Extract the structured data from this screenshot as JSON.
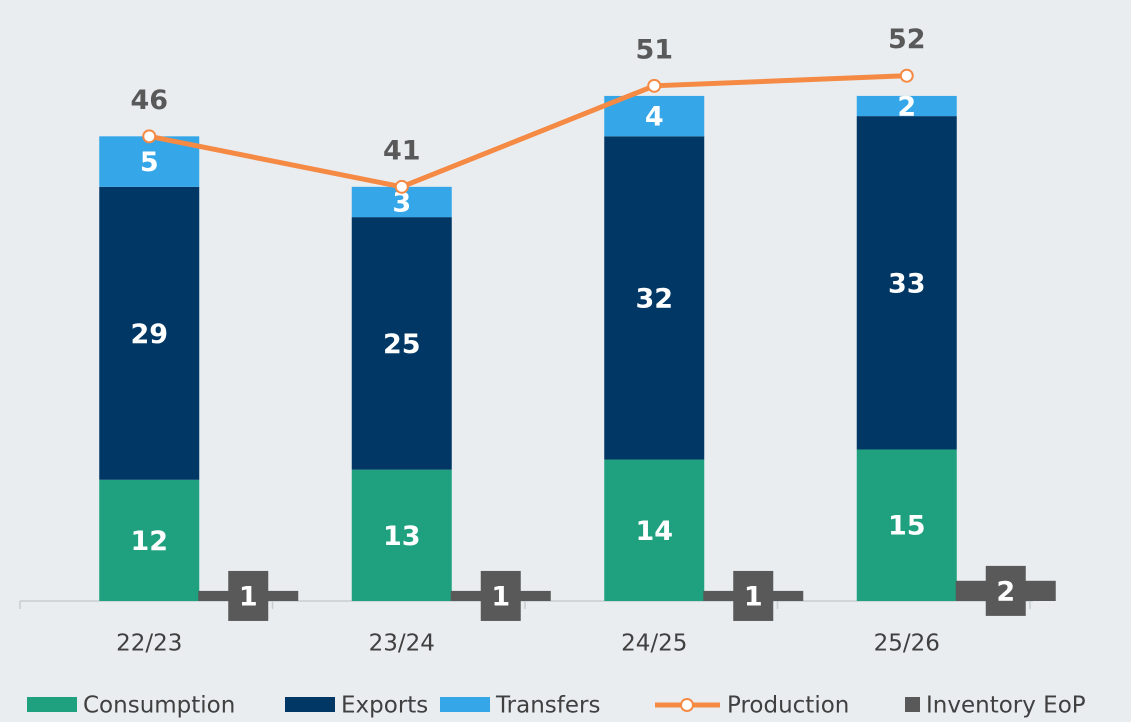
{
  "chart_data": {
    "type": "bar",
    "categories": [
      "22/23",
      "23/24",
      "24/25",
      "25/26"
    ],
    "series": [
      {
        "name": "Consumption",
        "color": "#1fa07f",
        "values": [
          12,
          13,
          14,
          15
        ]
      },
      {
        "name": "Exports",
        "color": "#003764",
        "values": [
          29,
          25,
          32,
          33
        ]
      },
      {
        "name": "Transfers",
        "color": "#35a7e8",
        "values": [
          5,
          3,
          4,
          2
        ]
      },
      {
        "name": "Production",
        "type": "line",
        "color": "#f58a45",
        "values": [
          46,
          41,
          51,
          52
        ]
      },
      {
        "name": "Inventory EoP",
        "type": "marker",
        "color": "#595959",
        "values": [
          1,
          1,
          1,
          2
        ]
      }
    ],
    "ylim": [
      0,
      59
    ]
  }
}
